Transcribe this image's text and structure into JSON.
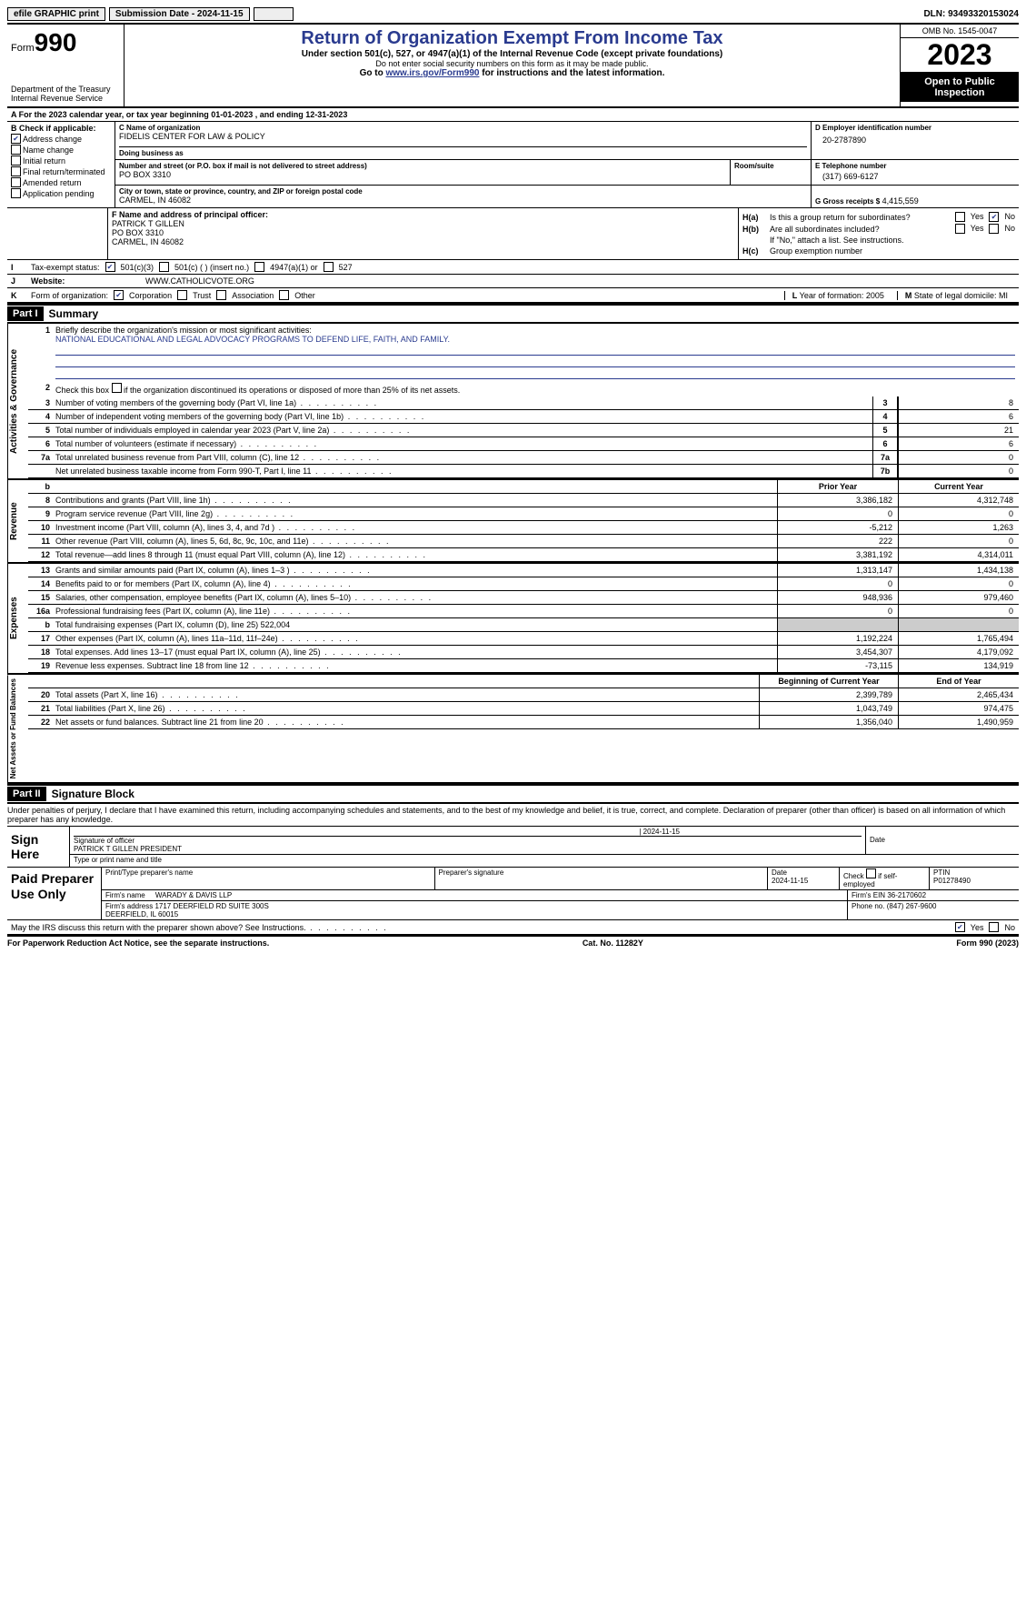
{
  "topbar": {
    "efile": "efile GRAPHIC print",
    "submission": "Submission Date - 2024-11-15",
    "dln_label": "DLN:",
    "dln": "93493320153024"
  },
  "header": {
    "form_word": "Form",
    "form_num": "990",
    "dept": "Department of the Treasury\nInternal Revenue Service",
    "title": "Return of Organization Exempt From Income Tax",
    "subtitle": "Under section 501(c), 527, or 4947(a)(1) of the Internal Revenue Code (except private foundations)",
    "ssn_warn": "Do not enter social security numbers on this form as it may be made public.",
    "goto_pre": "Go to ",
    "goto_link": "www.irs.gov/Form990",
    "goto_post": " for instructions and the latest information.",
    "omb": "OMB No. 1545-0047",
    "year": "2023",
    "open": "Open to Public Inspection"
  },
  "line_a": "A For the 2023 calendar year, or tax year beginning 01-01-2023    , and ending 12-31-2023",
  "box_b": {
    "header": "B Check if applicable:",
    "items": [
      {
        "label": "Address change",
        "checked": true
      },
      {
        "label": "Name change",
        "checked": false
      },
      {
        "label": "Initial return",
        "checked": false
      },
      {
        "label": "Final return/terminated",
        "checked": false
      },
      {
        "label": "Amended return",
        "checked": false
      },
      {
        "label": "Application pending",
        "checked": false
      }
    ]
  },
  "box_c": {
    "name_label": "C Name of organization",
    "name": "FIDELIS CENTER FOR LAW & POLICY",
    "dba_label": "Doing business as",
    "dba": "",
    "street_label": "Number and street (or P.O. box if mail is not delivered to street address)",
    "street": "PO BOX 3310",
    "room_label": "Room/suite",
    "room": "",
    "city_label": "City or town, state or province, country, and ZIP or foreign postal code",
    "city": "CARMEL, IN  46082"
  },
  "box_d": {
    "ein_label": "D Employer identification number",
    "ein": "20-2787890",
    "tel_label": "E Telephone number",
    "tel": "(317) 669-6127",
    "gross_label": "G Gross receipts $",
    "gross": "4,415,559"
  },
  "box_f": {
    "label": "F  Name and address of principal officer:",
    "name": "PATRICK T GILLEN",
    "addr1": "PO BOX 3310",
    "addr2": "CARMEL, IN  46082"
  },
  "box_h": {
    "ha_label": "H(a)",
    "ha_q": "Is this a group return for subordinates?",
    "ha_yes": false,
    "ha_no": true,
    "hb_label": "H(b)",
    "hb_q": "Are all subordinates included?",
    "hb_yes": false,
    "hb_no": false,
    "hb_note": "If \"No,\" attach a list. See instructions.",
    "hc_label": "H(c)",
    "hc_q": "Group exemption number",
    "hc_val": ""
  },
  "box_i": {
    "label": "I",
    "title": "Tax-exempt status:",
    "c3": true,
    "c_other_label": "501(c) (  ) (insert no.)",
    "a1_label": "4947(a)(1) or",
    "527_label": "527"
  },
  "box_j": {
    "label": "J",
    "title": "Website:",
    "value": "WWW.CATHOLICVOTE.ORG"
  },
  "box_k": {
    "label": "K",
    "title": "Form of organization:",
    "corp": true,
    "opts": [
      "Corporation",
      "Trust",
      "Association",
      "Other"
    ]
  },
  "box_l": {
    "label": "L",
    "title": "Year of formation:",
    "value": "2005"
  },
  "box_m": {
    "label": "M",
    "title": "State of legal domicile:",
    "value": "MI"
  },
  "part1": {
    "hdr": "Part I",
    "title": "Summary",
    "line1_label": "Briefly describe the organization's mission or most significant activities:",
    "line1_text": "NATIONAL EDUCATIONAL AND LEGAL ADVOCACY PROGRAMS TO DEFEND LIFE, FAITH, AND FAMILY.",
    "line2": "Check this box  if the organization discontinued its operations or disposed of more than 25% of its net assets.",
    "gov_label": "Activities & Governance",
    "rev_label": "Revenue",
    "exp_label": "Expenses",
    "net_label": "Net Assets or Fund Balances",
    "prior_hdr": "Prior Year",
    "current_hdr": "Current Year",
    "begin_hdr": "Beginning of Current Year",
    "end_hdr": "End of Year",
    "gov_lines": [
      {
        "n": "3",
        "desc": "Number of voting members of the governing body (Part VI, line 1a)",
        "box": "3",
        "val": "8"
      },
      {
        "n": "4",
        "desc": "Number of independent voting members of the governing body (Part VI, line 1b)",
        "box": "4",
        "val": "6"
      },
      {
        "n": "5",
        "desc": "Total number of individuals employed in calendar year 2023 (Part V, line 2a)",
        "box": "5",
        "val": "21"
      },
      {
        "n": "6",
        "desc": "Total number of volunteers (estimate if necessary)",
        "box": "6",
        "val": "6"
      },
      {
        "n": "7a",
        "desc": "Total unrelated business revenue from Part VIII, column (C), line 12",
        "box": "7a",
        "val": "0"
      },
      {
        "n": "",
        "desc": "Net unrelated business taxable income from Form 990-T, Part I, line 11",
        "box": "7b",
        "val": "0"
      }
    ],
    "rev_lines": [
      {
        "n": "8",
        "desc": "Contributions and grants (Part VIII, line 1h)",
        "prior": "3,386,182",
        "curr": "4,312,748"
      },
      {
        "n": "9",
        "desc": "Program service revenue (Part VIII, line 2g)",
        "prior": "0",
        "curr": "0"
      },
      {
        "n": "10",
        "desc": "Investment income (Part VIII, column (A), lines 3, 4, and 7d )",
        "prior": "-5,212",
        "curr": "1,263"
      },
      {
        "n": "11",
        "desc": "Other revenue (Part VIII, column (A), lines 5, 6d, 8c, 9c, 10c, and 11e)",
        "prior": "222",
        "curr": "0"
      },
      {
        "n": "12",
        "desc": "Total revenue—add lines 8 through 11 (must equal Part VIII, column (A), line 12)",
        "prior": "3,381,192",
        "curr": "4,314,011"
      }
    ],
    "exp_lines": [
      {
        "n": "13",
        "desc": "Grants and similar amounts paid (Part IX, column (A), lines 1–3 )",
        "prior": "1,313,147",
        "curr": "1,434,138"
      },
      {
        "n": "14",
        "desc": "Benefits paid to or for members (Part IX, column (A), line 4)",
        "prior": "0",
        "curr": "0"
      },
      {
        "n": "15",
        "desc": "Salaries, other compensation, employee benefits (Part IX, column (A), lines 5–10)",
        "prior": "948,936",
        "curr": "979,460"
      },
      {
        "n": "16a",
        "desc": "Professional fundraising fees (Part IX, column (A), line 11e)",
        "prior": "0",
        "curr": "0"
      },
      {
        "n": "b",
        "desc": "Total fundraising expenses (Part IX, column (D), line 25) 522,004",
        "prior": "grey",
        "curr": "grey"
      },
      {
        "n": "17",
        "desc": "Other expenses (Part IX, column (A), lines 11a–11d, 11f–24e)",
        "prior": "1,192,224",
        "curr": "1,765,494"
      },
      {
        "n": "18",
        "desc": "Total expenses. Add lines 13–17 (must equal Part IX, column (A), line 25)",
        "prior": "3,454,307",
        "curr": "4,179,092"
      },
      {
        "n": "19",
        "desc": "Revenue less expenses. Subtract line 18 from line 12",
        "prior": "-73,115",
        "curr": "134,919"
      }
    ],
    "net_lines": [
      {
        "n": "20",
        "desc": "Total assets (Part X, line 16)",
        "prior": "2,399,789",
        "curr": "2,465,434"
      },
      {
        "n": "21",
        "desc": "Total liabilities (Part X, line 26)",
        "prior": "1,043,749",
        "curr": "974,475"
      },
      {
        "n": "22",
        "desc": "Net assets or fund balances. Subtract line 21 from line 20",
        "prior": "1,356,040",
        "curr": "1,490,959"
      }
    ]
  },
  "part2": {
    "hdr": "Part II",
    "title": "Signature Block",
    "decl": "Under penalties of perjury, I declare that I have examined this return, including accompanying schedules and statements, and to the best of my knowledge and belief, it is true, correct, and complete. Declaration of preparer (other than officer) is based on all information of which preparer has any knowledge.",
    "sign_here": "Sign Here",
    "sig_officer_label": "Signature of officer",
    "sig_officer": "PATRICK T GILLEN  PRESIDENT",
    "sig_name_label": "Type or print name and title",
    "sig_date_label": "Date",
    "sig_date": "2024-11-15",
    "paid": "Paid Preparer Use Only",
    "prep_name_label": "Print/Type preparer's name",
    "prep_sig_label": "Preparer's signature",
    "prep_date_label": "Date",
    "prep_date": "2024-11-15",
    "prep_check_label": "Check  if self-employed",
    "ptin_label": "PTIN",
    "ptin": "P01278490",
    "firm_name_label": "Firm's name",
    "firm_name": "WARADY & DAVIS LLP",
    "firm_ein_label": "Firm's EIN",
    "firm_ein": "36-2170602",
    "firm_addr_label": "Firm's address",
    "firm_addr": "1717 DEERFIELD RD SUITE 300S\nDEERFIELD, IL  60015",
    "firm_phone_label": "Phone no.",
    "firm_phone": "(847) 267-9600",
    "discuss": "May the IRS discuss this return with the preparer shown above? See Instructions.",
    "discuss_yes": true
  },
  "footer": {
    "left": "For Paperwork Reduction Act Notice, see the separate instructions.",
    "mid": "Cat. No. 11282Y",
    "right": "Form 990 (2023)"
  }
}
